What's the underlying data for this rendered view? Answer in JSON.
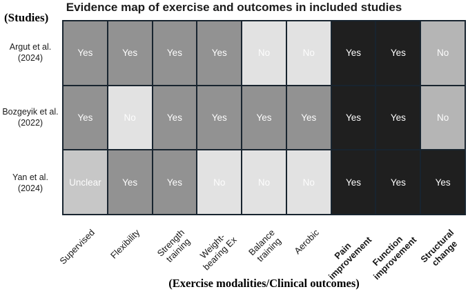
{
  "colors": {
    "cell-yes": "#929292",
    "cell-no": "#e2e2e2",
    "cell-unclear": "#c7c7c7",
    "cell-outcome": "#1f1f1f",
    "cell-no-medium": "#b5b5b5",
    "grid-border": "#18242f",
    "cell-text": "#fdfdfd"
  },
  "chart_data": {
    "type": "heatmap",
    "title": "Evidence map of exercise and outcomes in included studies",
    "y_axis_title": "(Studies)",
    "x_axis_title": "(Exercise modalities/Clinical outcomes)",
    "legend": "none",
    "columns": [
      {
        "label": "Supervised",
        "group": "exercise-modality",
        "bold": false
      },
      {
        "label": "Flexibility",
        "group": "exercise-modality",
        "bold": false
      },
      {
        "label": "Strength\ntraining",
        "group": "exercise-modality",
        "bold": false
      },
      {
        "label": "Weight-\nbearing Ex",
        "group": "exercise-modality",
        "bold": false
      },
      {
        "label": "Balance\ntraining",
        "group": "exercise-modality",
        "bold": false
      },
      {
        "label": "Aerobic",
        "group": "exercise-modality",
        "bold": false
      },
      {
        "label": "Pain\nimprovement",
        "group": "clinical-outcome",
        "bold": true
      },
      {
        "label": "Function\nimprovement",
        "group": "clinical-outcome",
        "bold": true
      },
      {
        "label": "Structural\nchange",
        "group": "clinical-outcome",
        "bold": true
      }
    ],
    "rows": [
      {
        "label": "Argut et al.\n(2024)",
        "cells": [
          {
            "value": "Yes",
            "tone": "yes-modality"
          },
          {
            "value": "Yes",
            "tone": "yes-modality"
          },
          {
            "value": "Yes",
            "tone": "yes-modality"
          },
          {
            "value": "Yes",
            "tone": "yes-modality"
          },
          {
            "value": "No",
            "tone": "no-modality"
          },
          {
            "value": "No",
            "tone": "no-modality"
          },
          {
            "value": "Yes",
            "tone": "yes-outcome"
          },
          {
            "value": "Yes",
            "tone": "yes-outcome"
          },
          {
            "value": "No",
            "tone": "no-outcome"
          }
        ]
      },
      {
        "label": "Bozgeyik et al.\n(2022)",
        "cells": [
          {
            "value": "Yes",
            "tone": "yes-modality"
          },
          {
            "value": "No",
            "tone": "no-modality"
          },
          {
            "value": "Yes",
            "tone": "yes-modality"
          },
          {
            "value": "Yes",
            "tone": "yes-modality"
          },
          {
            "value": "Yes",
            "tone": "yes-modality"
          },
          {
            "value": "Yes",
            "tone": "yes-modality"
          },
          {
            "value": "Yes",
            "tone": "yes-outcome"
          },
          {
            "value": "Yes",
            "tone": "yes-outcome"
          },
          {
            "value": "No",
            "tone": "no-outcome"
          }
        ]
      },
      {
        "label": "Yan et al.\n(2024)",
        "cells": [
          {
            "value": "Unclear",
            "tone": "unclear"
          },
          {
            "value": "Yes",
            "tone": "yes-modality"
          },
          {
            "value": "Yes",
            "tone": "yes-modality"
          },
          {
            "value": "No",
            "tone": "no-modality"
          },
          {
            "value": "No",
            "tone": "no-modality"
          },
          {
            "value": "No",
            "tone": "no-modality"
          },
          {
            "value": "Yes",
            "tone": "yes-outcome"
          },
          {
            "value": "Yes",
            "tone": "yes-outcome"
          },
          {
            "value": "Yes",
            "tone": "yes-outcome"
          }
        ]
      }
    ]
  }
}
